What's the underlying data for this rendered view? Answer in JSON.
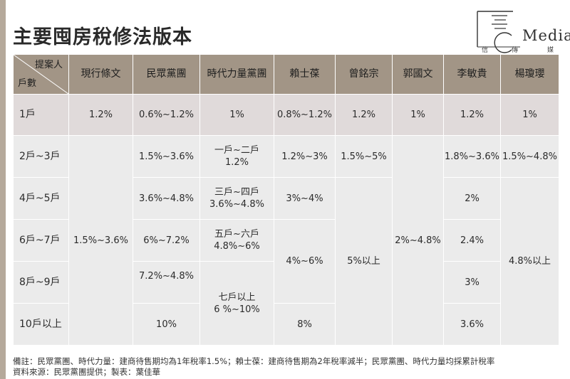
{
  "title": "主要囤房稅修法版本",
  "logo": {
    "mark": "I",
    "word": "Media",
    "sub1": "信",
    "sub2": "傳",
    "sub3": "媒"
  },
  "corner": {
    "top": "提案人",
    "bottom": "戶數"
  },
  "headers": [
    "現行條文",
    "民眾黨團",
    "時代力量黨團",
    "賴士葆",
    "曾銘宗",
    "郭國文",
    "李敏貴",
    "楊瓊瓔"
  ],
  "rows": {
    "r1": {
      "label": "1戶",
      "c1": "1.2%",
      "c2": "0.6%~1.2%",
      "c3": "1%",
      "c4": "0.8%~1.2%",
      "c5": "1.2%",
      "c6": "1%",
      "c7": "1.2%",
      "c8": "1%"
    },
    "r2": {
      "label": "2戶~3戶",
      "c2": "1.5%~3.6%",
      "c3a": "一戶~二戶",
      "c3b": "1.2%",
      "c4": "1.2%~3%",
      "c5": "1.5%~5%",
      "c7": "1.8%~3.6%",
      "c8": "1.5%~4.8%"
    },
    "r3": {
      "label": "4戶~5戶",
      "c2": "3.6%~4.8%",
      "c3a": "三戶~四戶",
      "c3b": "3.6%~4.8%",
      "c4": "3%~4%",
      "c7": "2%"
    },
    "r4": {
      "label": "6戶~7戶",
      "c1": "1.5%~3.6%",
      "c2": "6%~7.2%",
      "c3a": "五戶~六戶",
      "c3b": "4.8%~6%",
      "c6": "2%~4.8%",
      "c7": "2.4%"
    },
    "r5": {
      "label": "8戶~9戶",
      "c2": "7.2%~4.8%",
      "c4": "4%~6%",
      "c5": "5%以上",
      "c7": "3%",
      "c8": "4.8%以上"
    },
    "r6": {
      "label": "10戶以上",
      "c2": "10%",
      "c3a": "七戶以上",
      "c3b": "6 %~10%",
      "c4": "8%",
      "c7": "3.6%"
    }
  },
  "notes": {
    "remark": "備註：民眾黨團、時代力量：建商待售期均為1年稅率1.5%；賴士葆：建商待售期為2年稅率減半；民眾黨團、時代力量均採累計稅率",
    "source": "資料來源：民眾黨團提供；製表：葉佳華"
  }
}
